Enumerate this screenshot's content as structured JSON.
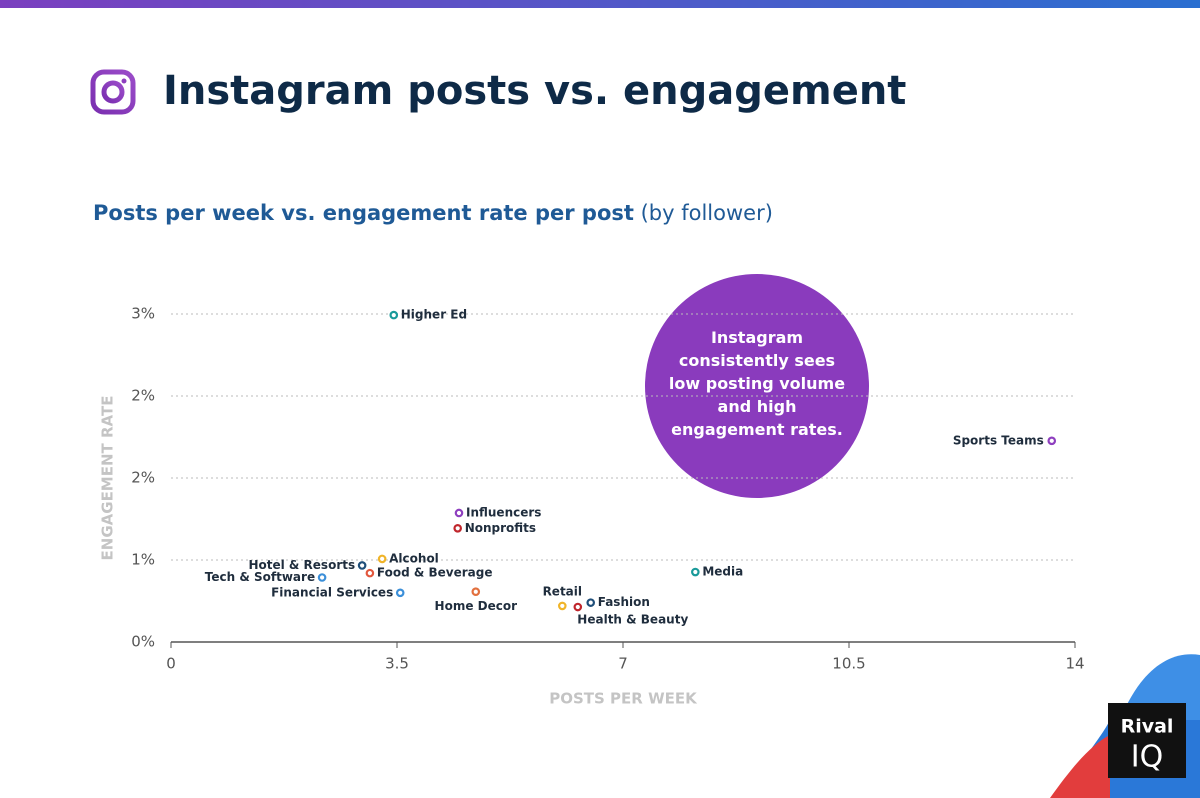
{
  "title": "Instagram posts vs. engagement",
  "brand": {
    "line1": "Rival",
    "line2": "IQ"
  },
  "chart_data": {
    "type": "scatter",
    "subtitle": "Posts per week vs. engagement rate per post",
    "subtitle_note": "(by follower)",
    "x_label": "POSTS PER WEEK",
    "y_label": "ENGAGEMENT RATE",
    "annotation": "Instagram consistently sees low posting volume and high engagement rates.",
    "labels": [
      "Higher Ed",
      "Sports Teams",
      "Influencers",
      "Nonprofits",
      "Alcohol",
      "Hotel & Resorts",
      "Tech & Software",
      "Food & Beverage",
      "Financial Services",
      "Home Decor",
      "Media",
      "Retail",
      "Fashion",
      "Health & Beauty"
    ],
    "x": [
      3.45,
      13.64,
      4.46,
      4.44,
      3.27,
      2.96,
      2.34,
      3.08,
      3.55,
      4.72,
      8.12,
      6.06,
      6.5,
      6.3
    ],
    "values": [
      2.99,
      1.84,
      1.18,
      1.04,
      0.76,
      0.7,
      0.59,
      0.63,
      0.45,
      0.46,
      0.64,
      0.33,
      0.36,
      0.32
    ],
    "colors": [
      "#1a9a9a",
      "#8e3fbf",
      "#8e3fbf",
      "#c0262c",
      "#f0b429",
      "#1f4e79",
      "#3b8fd9",
      "#e2583e",
      "#3b8fd9",
      "#e2703e",
      "#1a9a9a",
      "#f0b429",
      "#1f4e79",
      "#c0262c"
    ],
    "xlim": [
      0,
      14
    ],
    "xticks": [
      0,
      3.5,
      7,
      10.5,
      14
    ],
    "ylim": [
      0,
      3
    ],
    "yticks": [
      {
        "value": 0,
        "label": "0%"
      },
      {
        "value": 0.75,
        "label": "1%"
      },
      {
        "value": 1.5,
        "label": "2%"
      },
      {
        "value": 2.25,
        "label": "2%"
      },
      {
        "value": 3,
        "label": "3%"
      }
    ],
    "grid": true,
    "annotation_color": "#8a3bbd"
  }
}
